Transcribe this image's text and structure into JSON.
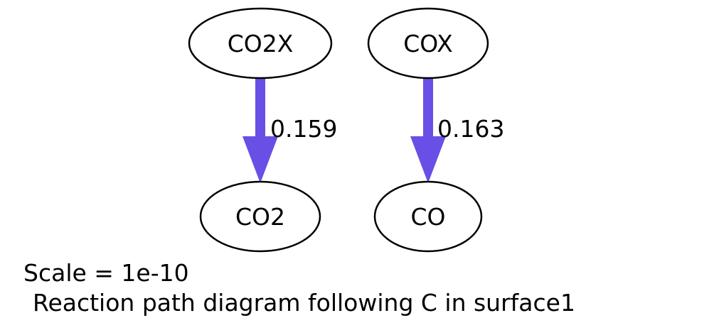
{
  "diagram": {
    "nodes": {
      "co2x": "CO2X",
      "cox": "COX",
      "co2": "CO2",
      "co": "CO"
    },
    "edges": {
      "co2x_to_co2": "0.159",
      "cox_to_co": "0.163"
    },
    "caption": {
      "scale": "Scale = 1e-10",
      "title": "Reaction path diagram following C in surface1"
    },
    "colors": {
      "edge": "#6a4fe6",
      "node_stroke": "#000000"
    }
  }
}
